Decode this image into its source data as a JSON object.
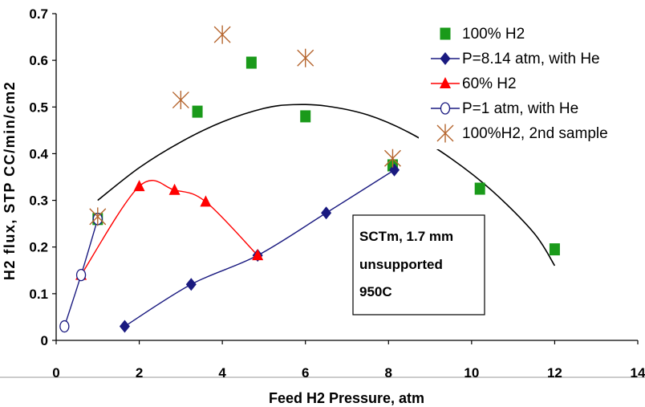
{
  "chart_data": {
    "type": "scatter",
    "xlabel": "Feed H2 Pressure, atm",
    "ylabel": "H2 flux, STP CC/min/cm2",
    "xlim": [
      0,
      14
    ],
    "ylim": [
      0,
      0.7
    ],
    "x_ticks": [
      "0",
      "2",
      "4",
      "6",
      "8",
      "10",
      "12",
      "14"
    ],
    "y_ticks": [
      "0",
      "0.1",
      "0.2",
      "0.3",
      "0.4",
      "0.5",
      "0.6",
      "0.7"
    ],
    "grid": false,
    "legend_position": "top-right",
    "annotation": [
      "SCTm, 1.7 mm",
      "unsupported",
      "950C"
    ],
    "series": [
      {
        "name": "100% H2",
        "marker": "square",
        "color": "#1a9a1a",
        "points": [
          [
            1.0,
            0.26
          ],
          [
            3.4,
            0.49
          ],
          [
            4.7,
            0.595
          ],
          [
            6.0,
            0.48
          ],
          [
            8.1,
            0.375
          ],
          [
            10.2,
            0.325
          ],
          [
            12.0,
            0.195
          ]
        ]
      },
      {
        "name": "P=8.14 atm, with He",
        "marker": "diamond",
        "color": "#1a1a80",
        "line": true,
        "points": [
          [
            1.65,
            0.03
          ],
          [
            3.25,
            0.12
          ],
          [
            4.85,
            0.182
          ],
          [
            6.5,
            0.273
          ],
          [
            8.14,
            0.365
          ]
        ]
      },
      {
        "name": "60% H2",
        "marker": "triangle",
        "color": "#ff0000",
        "line": true,
        "points": [
          [
            0.6,
            0.14
          ],
          [
            2.0,
            0.33
          ],
          [
            2.85,
            0.322
          ],
          [
            3.6,
            0.297
          ],
          [
            4.85,
            0.182
          ]
        ]
      },
      {
        "name": "P=1 atm, with He",
        "marker": "circle",
        "color": "#1a1a80",
        "line": true,
        "points": [
          [
            0.2,
            0.03
          ],
          [
            0.6,
            0.14
          ],
          [
            1.0,
            0.26
          ]
        ]
      },
      {
        "name": "100%H2, 2nd sample",
        "marker": "star",
        "color": "#b5652e",
        "points": [
          [
            1.0,
            0.265
          ],
          [
            3.0,
            0.515
          ],
          [
            4.0,
            0.655
          ],
          [
            6.0,
            0.605
          ],
          [
            8.1,
            0.39
          ]
        ]
      }
    ],
    "trendline": {
      "color": "#000000",
      "points": [
        [
          1.0,
          0.3
        ],
        [
          2.0,
          0.37
        ],
        [
          3.0,
          0.425
        ],
        [
          4.0,
          0.468
        ],
        [
          5.0,
          0.497
        ],
        [
          5.7,
          0.505
        ],
        [
          6.5,
          0.502
        ],
        [
          7.5,
          0.483
        ],
        [
          8.5,
          0.445
        ],
        [
          9.5,
          0.39
        ],
        [
          10.5,
          0.32
        ],
        [
          11.5,
          0.23
        ],
        [
          12.0,
          0.16
        ]
      ]
    }
  }
}
